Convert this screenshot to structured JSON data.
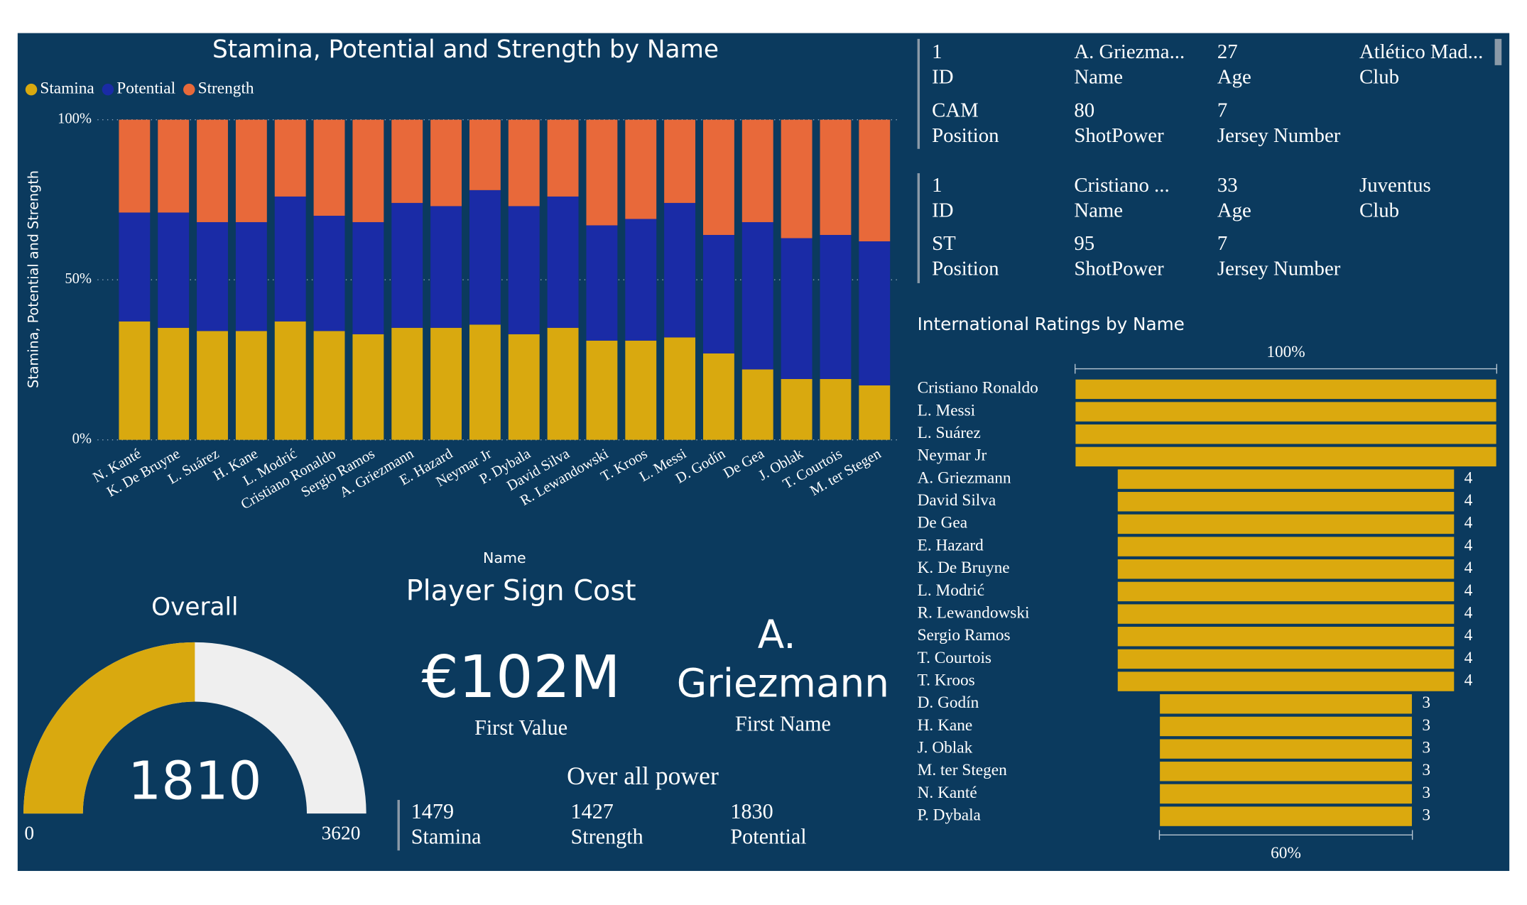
{
  "chart_data": [
    {
      "type": "bar",
      "stacked": "percent",
      "title": "Stamina, Potential and Strength by Name",
      "x_label": "Name",
      "y_label": "Stamina, Potential and Strength",
      "legend": "top-left",
      "categories": [
        "N. Kanté",
        "K. De Bruyne",
        "L. Suárez",
        "H. Kane",
        "L. Modrić",
        "Cristiano Ronaldo",
        "Sergio Ramos",
        "A. Griezmann",
        "E. Hazard",
        "Neymar Jr",
        "P. Dybala",
        "David Silva",
        "R. Lewandowski",
        "T. Kroos",
        "L. Messi",
        "D. Godín",
        "De Gea",
        "J. Oblak",
        "T. Courtois",
        "M. ter Stegen"
      ],
      "series": [
        {
          "name": "Stamina",
          "color": "#d9a90f",
          "values": [
            37,
            35,
            34,
            34,
            37,
            34,
            33,
            35,
            35,
            36,
            33,
            35,
            31,
            31,
            32,
            27,
            22,
            19,
            19,
            17
          ]
        },
        {
          "name": "Potential",
          "color": "#1a2ba6",
          "values": [
            34,
            36,
            34,
            34,
            39,
            36,
            35,
            39,
            38,
            42,
            40,
            41,
            36,
            38,
            42,
            37,
            46,
            44,
            45,
            45
          ]
        },
        {
          "name": "Strength",
          "color": "#e8693a",
          "values": [
            29,
            29,
            32,
            32,
            24,
            30,
            32,
            26,
            27,
            22,
            27,
            24,
            33,
            31,
            26,
            36,
            32,
            37,
            36,
            38
          ]
        }
      ],
      "ylim": [
        0,
        100
      ],
      "yticks": [
        {
          "value": 0,
          "label": "0%"
        },
        {
          "value": 50,
          "label": "50%"
        },
        {
          "value": 100,
          "label": "100%"
        }
      ],
      "grid": true
    },
    {
      "type": "gauge",
      "title": "Overall",
      "value": 1810,
      "min": 0,
      "max": 3620,
      "color": "#d9a90f",
      "track_color": "#efefef"
    },
    {
      "type": "funnel",
      "title": "International Ratings by Name",
      "categories": [
        "Cristiano Ronaldo",
        "L. Messi",
        "L. Suárez",
        "Neymar Jr",
        "A. Griezmann",
        "David Silva",
        "De Gea",
        "E. Hazard",
        "K. De Bruyne",
        "L. Modrić",
        "R. Lewandowski",
        "Sergio Ramos",
        "T. Courtois",
        "T. Kroos",
        "D. Godín",
        "H. Kane",
        "J. Oblak",
        "M. ter Stegen",
        "N. Kanté",
        "P. Dybala"
      ],
      "values": [
        5,
        5,
        5,
        5,
        4,
        4,
        4,
        4,
        4,
        4,
        4,
        4,
        4,
        4,
        3,
        3,
        3,
        3,
        3,
        3
      ],
      "color": "#dba90e",
      "top_label": "100%",
      "bottom_label": "60%"
    }
  ],
  "player_cards": [
    {
      "fields": [
        {
          "value": "1",
          "label": "ID"
        },
        {
          "value": "A. Griezma...",
          "label": "Name"
        },
        {
          "value": "27",
          "label": "Age"
        },
        {
          "value": "Atlético Mad...",
          "label": "Club"
        },
        {
          "value": "CAM",
          "label": "Position"
        },
        {
          "value": "80",
          "label": "ShotPower"
        },
        {
          "value": "7",
          "label": "Jersey Number"
        }
      ]
    },
    {
      "fields": [
        {
          "value": "1",
          "label": "ID"
        },
        {
          "value": "Cristiano ...",
          "label": "Name"
        },
        {
          "value": "33",
          "label": "Age"
        },
        {
          "value": "Juventus",
          "label": "Club"
        },
        {
          "value": "ST",
          "label": "Position"
        },
        {
          "value": "95",
          "label": "ShotPower"
        },
        {
          "value": "7",
          "label": "Jersey Number"
        }
      ]
    }
  ],
  "sign_cost": {
    "title": "Player Sign Cost",
    "value": "€102M",
    "label": "First Value"
  },
  "first_name": {
    "value": "A. Griezmann",
    "label": "First Name"
  },
  "overall_power": {
    "title": "Over all power",
    "fields": [
      {
        "value": "1479",
        "label": "Stamina"
      },
      {
        "value": "1427",
        "label": "Strength"
      },
      {
        "value": "1830",
        "label": "Potential"
      }
    ]
  }
}
